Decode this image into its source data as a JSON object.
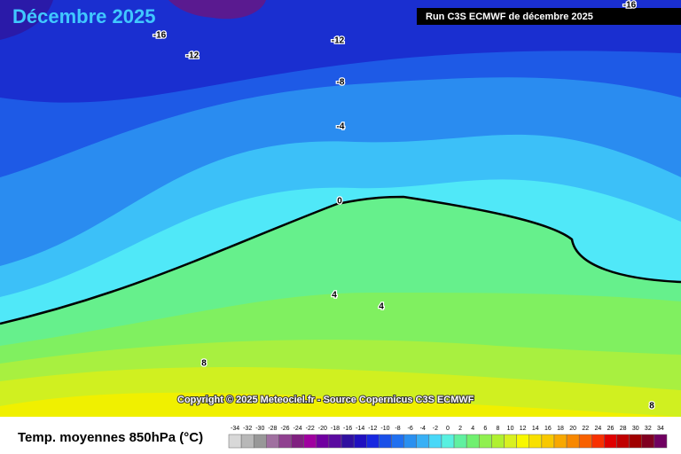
{
  "header": {
    "title": "Décembre 2025",
    "run": "Run C3S ECMWF de décembre 2025"
  },
  "map": {
    "contour_labels": [
      "-16",
      "-12",
      "-12",
      "-8",
      "-4",
      "0",
      "4",
      "4",
      "8",
      "-16",
      "8"
    ],
    "copyright": "Copyright © 2025 Meteociel.fr - Source Copernicus C3S ECMWF"
  },
  "legend": {
    "title": "Temp. moyennes 850hPa (°C)",
    "ticks": [
      -34,
      -32,
      -30,
      -28,
      -26,
      -24,
      -22,
      -20,
      -18,
      -16,
      -14,
      -12,
      -10,
      -8,
      -6,
      -4,
      -2,
      0,
      2,
      4,
      6,
      8,
      10,
      12,
      14,
      16,
      18,
      20,
      22,
      24,
      26,
      28,
      30,
      32,
      34
    ],
    "colors": [
      "#d8d8d8",
      "#b8b8b8",
      "#989898",
      "#a070a0",
      "#904090",
      "#802080",
      "#a000a0",
      "#7000a0",
      "#5a0aa0",
      "#3010a0",
      "#2010c0",
      "#1828e0",
      "#1a50e8",
      "#2070f0",
      "#2a90f0",
      "#38b0f5",
      "#48d8f8",
      "#58f0e0",
      "#60f0a0",
      "#70f070",
      "#90f050",
      "#b0f030",
      "#d8f020",
      "#f8f800",
      "#f8e000",
      "#f8c800",
      "#f8a800",
      "#f88800",
      "#f86000",
      "#f83000",
      "#e00000",
      "#c00000",
      "#a00000",
      "#800020",
      "#700060"
    ]
  }
}
